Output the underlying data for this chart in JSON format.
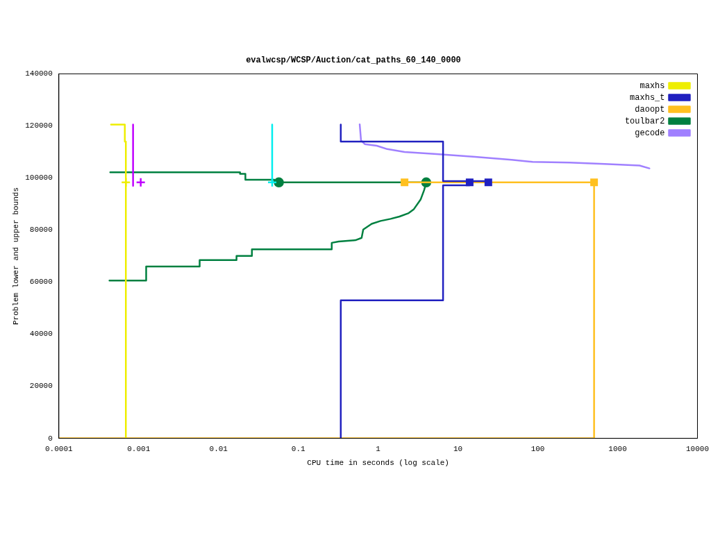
{
  "chart_data": {
    "type": "line",
    "title": "evalwcsp/WCSP/Auction/cat_paths_60_140_0000",
    "xlabel": "CPU time in seconds (log scale)",
    "ylabel": "Problem lower and upper bounds",
    "log": "x",
    "grid": false,
    "legend": "top right",
    "line_style": "solid",
    "xlim": [
      0.0001,
      10000
    ],
    "xticks": [
      0.0001,
      0.001,
      0.01,
      0.1,
      1,
      10,
      100,
      1000,
      10000
    ],
    "ylim": [
      0,
      140000
    ],
    "yticks": [
      0,
      20000,
      40000,
      60000,
      80000,
      100000,
      120000,
      140000
    ],
    "series": [
      {
        "color": "#c000ff",
        "x": [
          0.00085,
          0.00085
        ],
        "values": [
          120500,
          97000
        ]
      },
      {
        "type": "scatter",
        "color": "#c000ff",
        "marker": "cross",
        "x": [
          0.00106
        ],
        "values": [
          98300
        ]
      },
      {
        "color": "#00eeee",
        "x": [
          0.047,
          0.047
        ],
        "values": [
          120500,
          98300
        ]
      },
      {
        "type": "scatter",
        "color": "#00eeee",
        "marker": "cross",
        "x": [
          0.047
        ],
        "values": [
          98300
        ]
      },
      {
        "name": "maxhs",
        "color": "#eeee00",
        "x": [
          0.00045,
          0.00067,
          0.00067,
          0.00069,
          0.00069
        ],
        "values": [
          120500,
          120500,
          114000,
          114000,
          0
        ]
      },
      {
        "type": "scatter",
        "color": "#eeee00",
        "marker": "cross",
        "x": [
          0.00069
        ],
        "values": [
          98300
        ]
      },
      {
        "name": "maxhs_t",
        "color": "#2020c0",
        "x": [
          0.34,
          0.34,
          6.5,
          6.5,
          24,
          null,
          0.34,
          0.34,
          6.5,
          6.5,
          14
        ],
        "values": [
          120500,
          114000,
          114000,
          98800,
          98800,
          null,
          0,
          53000,
          53000,
          97200,
          97200
        ]
      },
      {
        "type": "scatter",
        "color": "#2020c0",
        "marker": "square",
        "x": [
          14,
          24
        ],
        "values": [
          98300,
          98300
        ]
      },
      {
        "name": "daoopt",
        "color": "#ffc020",
        "x": [
          2.1,
          507,
          507,
          0.0001
        ],
        "values": [
          98300,
          98300,
          0,
          0
        ]
      },
      {
        "type": "scatter",
        "color": "#ffc020",
        "marker": "square",
        "x": [
          2.14,
          507
        ],
        "values": [
          98300,
          98300
        ]
      },
      {
        "name": "toulbar2",
        "color": "#008040",
        "x": [
          0.00044,
          0.0186,
          0.0186,
          0.0217,
          0.0217,
          0.05,
          0.05,
          4.0,
          null,
          0.00043,
          0.00124,
          0.00124,
          0.0058,
          0.0058,
          0.0168,
          0.0168,
          0.0262,
          0.0262,
          0.262,
          0.262,
          0.32,
          0.52,
          0.62,
          0.65,
          0.83,
          1.07,
          1.43,
          1.85,
          2.41,
          2.78,
          3.4,
          3.76,
          4.0
        ],
        "values": [
          102200,
          102200,
          101600,
          101600,
          99300,
          99300,
          98300,
          98300,
          null,
          60600,
          60600,
          66000,
          66000,
          68500,
          68500,
          70100,
          70100,
          72600,
          72600,
          75100,
          75600,
          76100,
          77000,
          80200,
          82400,
          83500,
          84300,
          85200,
          86500,
          87900,
          91700,
          95300,
          98300
        ]
      },
      {
        "type": "scatter",
        "color": "#008040",
        "marker": "circle",
        "x": [
          0.057,
          4.0
        ],
        "values": [
          98300,
          98300
        ]
      },
      {
        "name": "gecode",
        "color": "#a080ff",
        "x": [
          0.587,
          0.61,
          0.68,
          0.96,
          1.3,
          2.14,
          5.4,
          16.4,
          47,
          86,
          250,
          686,
          1880,
          2500
        ],
        "values": [
          120600,
          114400,
          113000,
          112400,
          111100,
          110000,
          109200,
          108100,
          107000,
          106200,
          105900,
          105400,
          104800,
          103700
        ]
      }
    ]
  }
}
